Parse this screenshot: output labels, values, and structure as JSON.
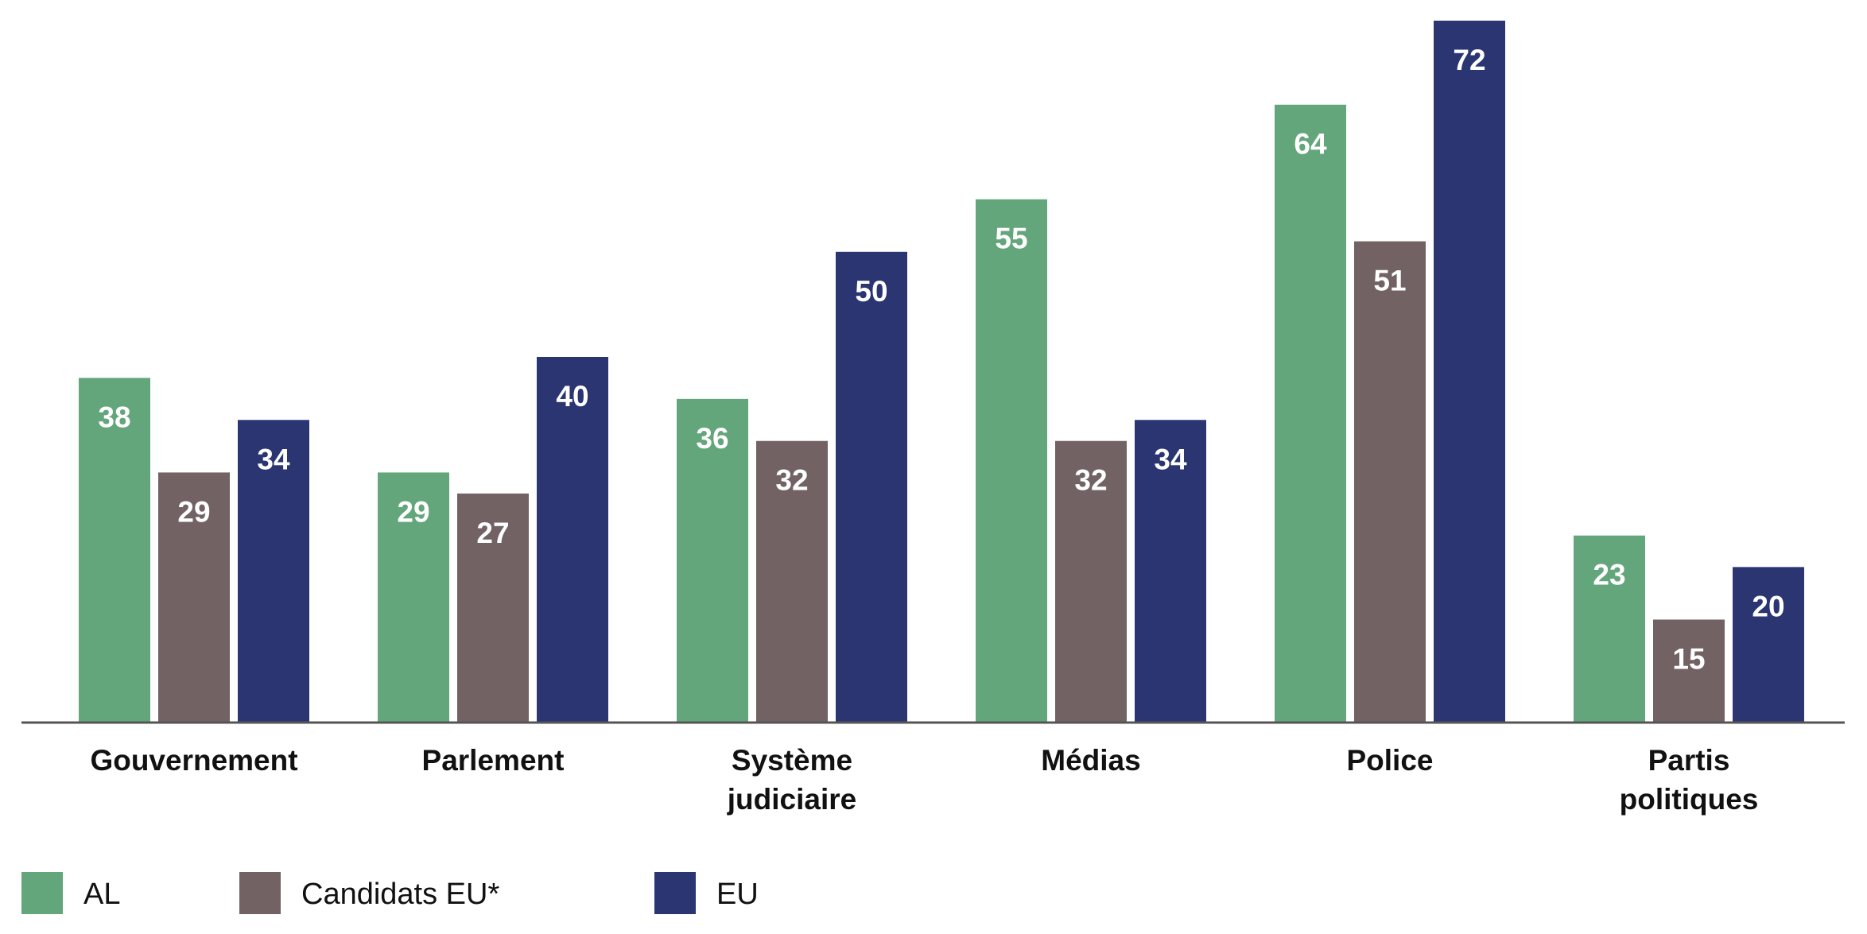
{
  "chart_data": {
    "type": "bar",
    "title": "",
    "xlabel": "",
    "ylabel": "",
    "ylim": [
      5.2,
      72
    ],
    "grid": false,
    "legend_position": "bottom-left",
    "categories": [
      [
        "Gouvernement"
      ],
      [
        "Parlement"
      ],
      [
        "Système",
        "judiciaire"
      ],
      [
        "Médias"
      ],
      [
        "Police"
      ],
      [
        "Partis",
        "politiques"
      ]
    ],
    "series": [
      {
        "name": "AL",
        "color": "#64A67B",
        "values": [
          38,
          29,
          36,
          55,
          64,
          23
        ]
      },
      {
        "name": "Candidats EU*",
        "color": "#726264",
        "values": [
          29,
          27,
          32,
          32,
          51,
          15
        ]
      },
      {
        "name": "EU",
        "color": "#2A3572",
        "values": [
          34,
          40,
          50,
          34,
          72,
          20
        ]
      }
    ]
  }
}
